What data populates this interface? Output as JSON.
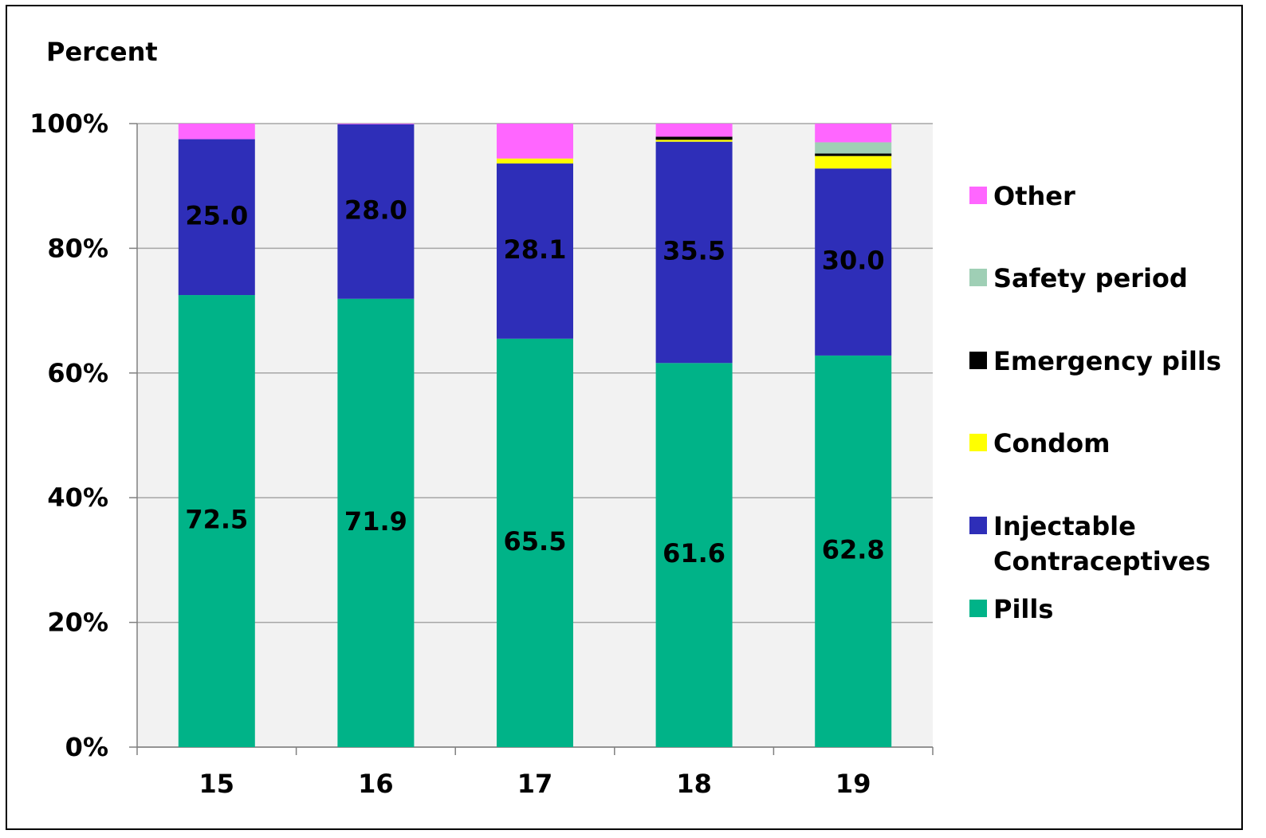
{
  "chart_data": {
    "type": "stacked_bar",
    "y_label": "Percent",
    "categories": [
      "15",
      "16",
      "17",
      "18",
      "19"
    ],
    "series": [
      {
        "name": "Pills",
        "color": "#00b388",
        "values": [
          72.5,
          71.9,
          65.5,
          61.6,
          62.8
        ],
        "value_labels": [
          "72.5",
          "71.9",
          "65.5",
          "61.6",
          "62.8"
        ]
      },
      {
        "name": "Injectable Contraceptives",
        "color": "#2e2eb8",
        "values": [
          25.0,
          28.0,
          28.1,
          35.5,
          30.0
        ],
        "value_labels": [
          "25.0",
          "28.0",
          "28.1",
          "35.5",
          "30.0"
        ]
      },
      {
        "name": "Condom",
        "color": "#ffff00",
        "values": [
          0,
          0,
          0.8,
          0.3,
          2.0
        ]
      },
      {
        "name": "Emergency pills",
        "color": "#000000",
        "values": [
          0,
          0,
          0,
          0.5,
          0.4
        ]
      },
      {
        "name": "Safety period",
        "color": "#9fcfb5",
        "values": [
          0,
          0,
          0,
          0,
          1.8
        ]
      },
      {
        "name": "Other",
        "color": "#ff66ff",
        "values": [
          2.5,
          0.1,
          5.6,
          2.1,
          3.0
        ]
      }
    ],
    "ylim": [
      0,
      100
    ],
    "yticks": [
      {
        "value": 0,
        "label": "0%"
      },
      {
        "value": 20,
        "label": "20%"
      },
      {
        "value": 40,
        "label": "40%"
      },
      {
        "value": 60,
        "label": "60%"
      },
      {
        "value": 80,
        "label": "80%"
      },
      {
        "value": 100,
        "label": "100%"
      }
    ],
    "grid": true
  }
}
